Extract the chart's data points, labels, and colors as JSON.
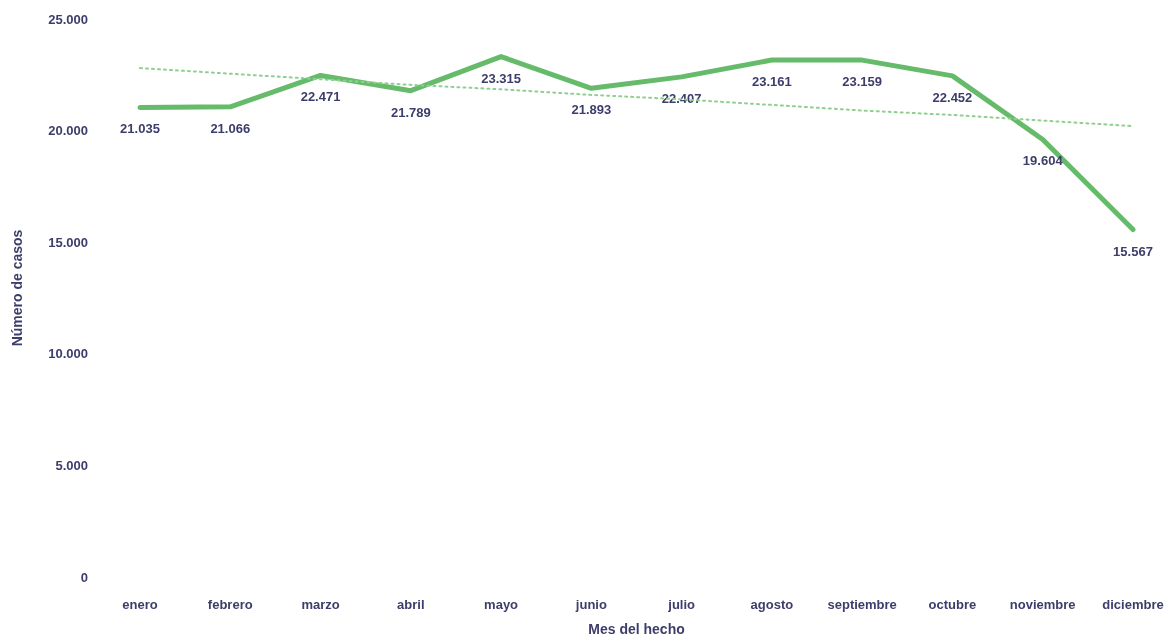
{
  "chart_data": {
    "type": "line",
    "xlabel": "Mes del hecho",
    "ylabel": "Número de casos",
    "categories": [
      "enero",
      "febrero",
      "marzo",
      "abril",
      "mayo",
      "junio",
      "julio",
      "agosto",
      "septiembre",
      "octubre",
      "noviembre",
      "diciembre"
    ],
    "series": [
      {
        "color": "#66bb6a",
        "line_style": "solid",
        "values": [
          21035,
          21066,
          22471,
          21789,
          23315,
          21893,
          22407,
          23161,
          23159,
          22452,
          19604,
          15567
        ],
        "value_labels": [
          "21.035",
          "21.066",
          "22.471",
          "21.789",
          "23.315",
          "21.893",
          "22.407",
          "23.161",
          "23.159",
          "22.452",
          "19.604",
          "15.567"
        ]
      },
      {
        "color": "#8fcf8f",
        "line_style": "dotted",
        "values": [
          22800,
          22550,
          22300,
          22050,
          21850,
          21600,
          21400,
          21150,
          20900,
          20700,
          20450,
          20200
        ]
      }
    ],
    "ylim": [
      0,
      25000
    ],
    "yticks": [
      0,
      {
        "value": 5000,
        "label": "5.000"
      },
      {
        "value": 10000,
        "label": "10.000"
      },
      {
        "value": 15000,
        "label": "15.000"
      },
      {
        "value": 20000,
        "label": "20.000"
      },
      {
        "value": 25000,
        "label": "25.000"
      }
    ],
    "grid": false
  }
}
